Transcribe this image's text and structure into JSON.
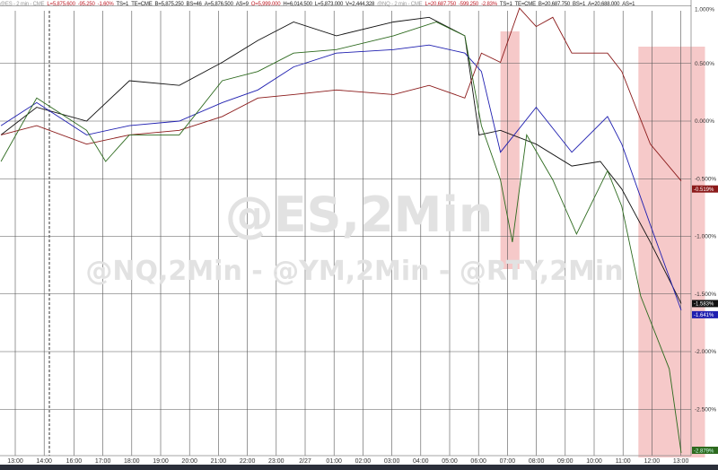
{
  "header": {
    "es": {
      "symbol": "@ES - 2 min - CME",
      "last": "L=5,875.600",
      "chg": "-95.250",
      "pct": "-1.60%",
      "ts": "TS=1",
      "te": "TE=CME",
      "bid": "B=5,875.250",
      "bs": "BS=46",
      "ask": "A=5,876.500",
      "as": "AS=9",
      "open": "O=5,999.000",
      "high": "H=6,014.500",
      "low": "L=5,873.000",
      "vol": "V=2,444,328"
    },
    "nq": {
      "symbol": "@NQ - 2 min - CME",
      "last": "L=20,687.750",
      "chg": "-599.250",
      "pct": "-2.83%",
      "ts": "TS=1",
      "te": "TE=CME",
      "bid": "B=20,687.750",
      "bs": "BS=1",
      "ask": "A=20,688.000",
      "as": "AS=1"
    }
  },
  "watermark": {
    "main": "@ES,2Min",
    "sub": "@NQ,2Min - @YM,2Min - @RTY,2Min"
  },
  "chart_data": {
    "type": "line",
    "x_ticks": [
      "13:00",
      "14:00",
      "16:00",
      "17:00",
      "18:00",
      "19:00",
      "20:00",
      "21:00",
      "22:00",
      "23:00",
      "2/27",
      "01:00",
      "02:00",
      "03:00",
      "04:00",
      "05:00",
      "06:00",
      "07:00",
      "08:00",
      "09:00",
      "10:00",
      "11:00",
      "12:00",
      "13:00"
    ],
    "y_ticks": [
      "1.000%",
      "0.500%",
      "0.000%",
      "-0.500%",
      "-1.000%",
      "-1.500%",
      "-2.000%",
      "-2.500%"
    ],
    "y_values": [
      1,
      0.5,
      0,
      -0.5,
      -1,
      -1.5,
      -2,
      -2.5
    ],
    "ylim": [
      -2.9,
      1.05
    ],
    "grid": true,
    "shaded_regions": [
      [
        "2/27 06:00",
        "2/27 06:40"
      ],
      [
        "2/27 10:50",
        "2/27 13:10"
      ]
    ],
    "shade_color": "#f6c9c9",
    "series": [
      {
        "id": "es",
        "color": "#111111",
        "end_label": "-1.583%",
        "points": [
          [
            "2/26 12:30",
            -0.12
          ],
          [
            "2/26 13:45",
            0.12
          ],
          [
            "2/26 15:30",
            0
          ],
          [
            "2/26 17:00",
            0.35
          ],
          [
            "2/26 18:45",
            0.31
          ],
          [
            "2/26 20:15",
            0.51
          ],
          [
            "2/26 21:30",
            0.7
          ],
          [
            "2/26 22:45",
            0.86
          ],
          [
            "2/27 00:15",
            0.74
          ],
          [
            "2/27 02:15",
            0.86
          ],
          [
            "2/27 03:30",
            0.9
          ],
          [
            "2/27 04:45",
            0.74
          ],
          [
            "2/27 05:15",
            -0.12
          ],
          [
            "2/27 06:00",
            -0.08
          ],
          [
            "2/27 07:15",
            -0.2
          ],
          [
            "2/27 08:30",
            -0.39
          ],
          [
            "2/27 09:30",
            -0.35
          ],
          [
            "2/27 10:15",
            -0.59
          ],
          [
            "2/27 11:15",
            -1.05
          ],
          [
            "2/27 12:20",
            -1.583
          ]
        ]
      },
      {
        "id": "nq",
        "color": "#1f1fb0",
        "end_label": "-1.641%",
        "points": [
          [
            "2/26 12:30",
            -0.04
          ],
          [
            "2/26 13:45",
            0.16
          ],
          [
            "2/26 15:30",
            -0.12
          ],
          [
            "2/26 17:00",
            -0.04
          ],
          [
            "2/26 18:45",
            0
          ],
          [
            "2/26 20:15",
            0.16
          ],
          [
            "2/26 21:30",
            0.27
          ],
          [
            "2/26 22:45",
            0.47
          ],
          [
            "2/27 00:15",
            0.59
          ],
          [
            "2/27 02:15",
            0.62
          ],
          [
            "2/27 03:30",
            0.66
          ],
          [
            "2/27 04:45",
            0.59
          ],
          [
            "2/27 05:20",
            0.43
          ],
          [
            "2/27 06:00",
            -0.27
          ],
          [
            "2/27 07:15",
            0.12
          ],
          [
            "2/27 08:30",
            -0.27
          ],
          [
            "2/27 09:45",
            0.04
          ],
          [
            "2/27 10:15",
            -0.2
          ],
          [
            "2/27 11:15",
            -0.9
          ],
          [
            "2/27 12:20",
            -1.641
          ]
        ]
      },
      {
        "id": "ym",
        "color": "#8b1a1a",
        "end_label": "-0.519%",
        "points": [
          [
            "2/26 12:30",
            -0.12
          ],
          [
            "2/26 13:45",
            -0.04
          ],
          [
            "2/26 15:30",
            -0.2
          ],
          [
            "2/26 17:00",
            -0.12
          ],
          [
            "2/26 18:45",
            -0.08
          ],
          [
            "2/26 20:15",
            0.04
          ],
          [
            "2/26 21:30",
            0.2
          ],
          [
            "2/26 22:45",
            0.23
          ],
          [
            "2/27 00:15",
            0.27
          ],
          [
            "2/27 02:15",
            0.23
          ],
          [
            "2/27 03:30",
            0.31
          ],
          [
            "2/27 04:45",
            0.2
          ],
          [
            "2/27 05:20",
            0.59
          ],
          [
            "2/27 06:00",
            0.51
          ],
          [
            "2/27 06:40",
            0.98
          ],
          [
            "2/27 07:15",
            0.82
          ],
          [
            "2/27 07:50",
            0.9
          ],
          [
            "2/27 08:30",
            0.59
          ],
          [
            "2/27 09:45",
            0.59
          ],
          [
            "2/27 10:15",
            0.43
          ],
          [
            "2/27 11:15",
            -0.2
          ],
          [
            "2/27 12:20",
            -0.519
          ]
        ]
      },
      {
        "id": "rty",
        "color": "#2d6a1e",
        "end_label": "-2.879%",
        "points": [
          [
            "2/26 12:30",
            -0.35
          ],
          [
            "2/26 13:45",
            0.2
          ],
          [
            "2/26 15:30",
            -0.08
          ],
          [
            "2/26 16:10",
            -0.35
          ],
          [
            "2/26 17:00",
            -0.12
          ],
          [
            "2/26 18:45",
            -0.12
          ],
          [
            "2/26 20:15",
            0.35
          ],
          [
            "2/26 21:30",
            0.43
          ],
          [
            "2/26 22:45",
            0.59
          ],
          [
            "2/27 00:15",
            0.62
          ],
          [
            "2/27 02:15",
            0.74
          ],
          [
            "2/27 03:45",
            0.86
          ],
          [
            "2/27 04:45",
            0.74
          ],
          [
            "2/27 05:20",
            -0.04
          ],
          [
            "2/27 06:00",
            -0.51
          ],
          [
            "2/27 06:25",
            -1.05
          ],
          [
            "2/27 06:55",
            -0.12
          ],
          [
            "2/27 07:50",
            -0.51
          ],
          [
            "2/27 08:40",
            -0.98
          ],
          [
            "2/27 09:45",
            -0.43
          ],
          [
            "2/27 10:15",
            -0.74
          ],
          [
            "2/27 10:55",
            -1.52
          ],
          [
            "2/27 11:55",
            -2.15
          ],
          [
            "2/27 12:20",
            -2.879
          ]
        ]
      }
    ]
  }
}
